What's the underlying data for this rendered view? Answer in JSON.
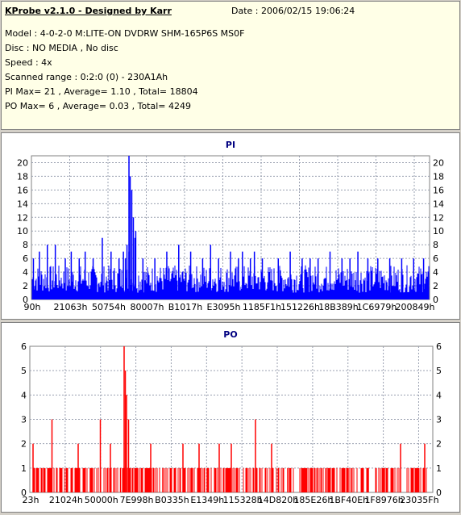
{
  "header": {
    "app_title": "KProbe v2.1.0 - Designed by Karr",
    "date": "Date : 2006/02/15 19:06:24",
    "lines": [
      "Model : 4-0-2-0 M:LITE-ON DVDRW SHM-165P6S MS0F",
      "Disc : NO MEDIA , No disc",
      "Speed : 4x",
      "Scanned range : 0:2:0 (0) - 230A1Ah",
      "PI Max= 21 , Average= 1.10 , Total= 18804",
      "PO Max= 6 , Average= 0.03 , Total= 4249"
    ]
  },
  "colors": {
    "pi": "#0000ff",
    "po": "#ff0000",
    "title": "#000080"
  },
  "chart_data": [
    {
      "type": "bar",
      "title": "PI",
      "ylim": [
        0,
        21
      ],
      "yticks": [
        0,
        2,
        4,
        6,
        8,
        10,
        12,
        14,
        16,
        18,
        20
      ],
      "xtick_labels": [
        "90h",
        "21063h",
        "50754h",
        "80007h",
        "B1017h",
        "E3095h",
        "1185F1h",
        "151226h",
        "18B389h",
        "1C6979h",
        "200849h"
      ],
      "grid": true,
      "color": "#0000ff",
      "baseline_range": [
        1,
        5
      ],
      "spikes": [
        {
          "pos": 0.005,
          "value": 6
        },
        {
          "pos": 0.02,
          "value": 7
        },
        {
          "pos": 0.04,
          "value": 8
        },
        {
          "pos": 0.06,
          "value": 8
        },
        {
          "pos": 0.085,
          "value": 6
        },
        {
          "pos": 0.1,
          "value": 7
        },
        {
          "pos": 0.12,
          "value": 6
        },
        {
          "pos": 0.135,
          "value": 7
        },
        {
          "pos": 0.155,
          "value": 6
        },
        {
          "pos": 0.178,
          "value": 9
        },
        {
          "pos": 0.2,
          "value": 7
        },
        {
          "pos": 0.22,
          "value": 6
        },
        {
          "pos": 0.245,
          "value": 7
        },
        {
          "pos": 0.262,
          "value": 10
        },
        {
          "pos": 0.28,
          "value": 6
        },
        {
          "pos": 0.31,
          "value": 6
        },
        {
          "pos": 0.231,
          "value": 7
        },
        {
          "pos": 0.236,
          "value": 6
        },
        {
          "pos": 0.24,
          "value": 8
        },
        {
          "pos": 0.245,
          "value": 21
        },
        {
          "pos": 0.248,
          "value": 18
        },
        {
          "pos": 0.252,
          "value": 16
        },
        {
          "pos": 0.256,
          "value": 12
        },
        {
          "pos": 0.26,
          "value": 9
        },
        {
          "pos": 0.34,
          "value": 7
        },
        {
          "pos": 0.37,
          "value": 8
        },
        {
          "pos": 0.4,
          "value": 7
        },
        {
          "pos": 0.43,
          "value": 6
        },
        {
          "pos": 0.45,
          "value": 8
        },
        {
          "pos": 0.47,
          "value": 6
        },
        {
          "pos": 0.5,
          "value": 7
        },
        {
          "pos": 0.52,
          "value": 6
        },
        {
          "pos": 0.53,
          "value": 7
        },
        {
          "pos": 0.55,
          "value": 6
        },
        {
          "pos": 0.56,
          "value": 7
        },
        {
          "pos": 0.58,
          "value": 6
        },
        {
          "pos": 0.62,
          "value": 6
        },
        {
          "pos": 0.65,
          "value": 7
        },
        {
          "pos": 0.68,
          "value": 6
        },
        {
          "pos": 0.7,
          "value": 6
        },
        {
          "pos": 0.72,
          "value": 6
        },
        {
          "pos": 0.75,
          "value": 7
        },
        {
          "pos": 0.78,
          "value": 6
        },
        {
          "pos": 0.8,
          "value": 6
        },
        {
          "pos": 0.82,
          "value": 7
        },
        {
          "pos": 0.845,
          "value": 6
        },
        {
          "pos": 0.87,
          "value": 6
        },
        {
          "pos": 0.9,
          "value": 6
        },
        {
          "pos": 0.93,
          "value": 6
        },
        {
          "pos": 0.96,
          "value": 6
        },
        {
          "pos": 0.985,
          "value": 6
        }
      ]
    },
    {
      "type": "bar",
      "title": "PO",
      "ylim": [
        0,
        6
      ],
      "yticks": [
        0,
        1,
        2,
        3,
        4,
        5,
        6
      ],
      "xtick_labels": [
        "23h",
        "21024h",
        "50000h",
        "7E998h",
        "B0335h",
        "E1349h",
        "115328h",
        "14D820h",
        "185E26h",
        "1BF40Eh",
        "1F8976h",
        "23035Fh"
      ],
      "grid": true,
      "color": "#ff0000",
      "spikes": [
        {
          "pos": 0.008,
          "value": 2
        },
        {
          "pos": 0.03,
          "value": 1
        },
        {
          "pos": 0.055,
          "value": 3
        },
        {
          "pos": 0.075,
          "value": 1
        },
        {
          "pos": 0.12,
          "value": 2
        },
        {
          "pos": 0.15,
          "value": 1
        },
        {
          "pos": 0.175,
          "value": 3
        },
        {
          "pos": 0.2,
          "value": 2
        },
        {
          "pos": 0.225,
          "value": 1
        },
        {
          "pos": 0.234,
          "value": 6
        },
        {
          "pos": 0.237,
          "value": 5
        },
        {
          "pos": 0.24,
          "value": 4
        },
        {
          "pos": 0.245,
          "value": 3
        },
        {
          "pos": 0.265,
          "value": 1
        },
        {
          "pos": 0.3,
          "value": 2
        },
        {
          "pos": 0.33,
          "value": 1
        },
        {
          "pos": 0.38,
          "value": 2
        },
        {
          "pos": 0.4,
          "value": 1
        },
        {
          "pos": 0.42,
          "value": 2
        },
        {
          "pos": 0.44,
          "value": 1
        },
        {
          "pos": 0.47,
          "value": 2
        },
        {
          "pos": 0.5,
          "value": 2
        },
        {
          "pos": 0.56,
          "value": 3
        },
        {
          "pos": 0.6,
          "value": 2
        },
        {
          "pos": 0.64,
          "value": 1
        },
        {
          "pos": 0.7,
          "value": 1
        },
        {
          "pos": 0.74,
          "value": 1
        },
        {
          "pos": 0.79,
          "value": 1
        },
        {
          "pos": 0.84,
          "value": 1
        },
        {
          "pos": 0.88,
          "value": 1
        },
        {
          "pos": 0.92,
          "value": 2
        },
        {
          "pos": 0.95,
          "value": 1
        },
        {
          "pos": 0.98,
          "value": 2
        }
      ]
    }
  ]
}
